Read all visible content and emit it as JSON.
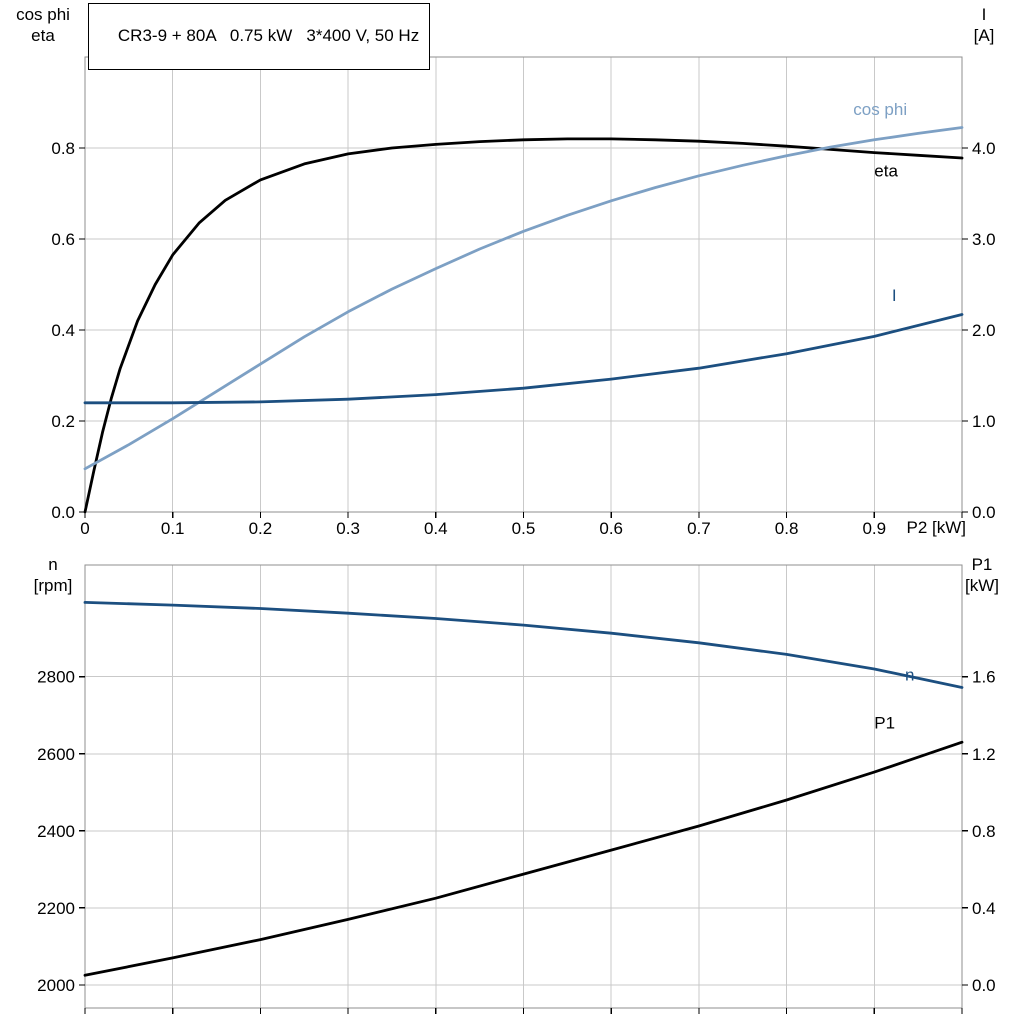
{
  "header": {
    "title": "CR3-9 + 80A   0.75 kW   3*400 V, 50 Hz"
  },
  "colors": {
    "black": "#000000",
    "light_blue": "#7da0c4",
    "dark_blue": "#1c4f80",
    "grid": "#c9c9c9",
    "frame": "#8f8f8f"
  },
  "chart_data": [
    {
      "type": "line",
      "name": "motor-electrical-curves",
      "x_axis": {
        "label": "P2 [kW]",
        "min": 0,
        "max": 1.0,
        "ticks": [
          0,
          0.1,
          0.2,
          0.3,
          0.4,
          0.5,
          0.6,
          0.7,
          0.8,
          0.9
        ],
        "tick_labels": [
          "0",
          "0.1",
          "0.2",
          "0.3",
          "0.4",
          "0.5",
          "0.6",
          "0.7",
          "0.8",
          "0.9"
        ]
      },
      "y_left": {
        "label": "cos phi\neta",
        "min": 0,
        "max": 1.0,
        "ticks": [
          0,
          0.2,
          0.4,
          0.6,
          0.8
        ],
        "tick_labels": [
          "0.0",
          "0.2",
          "0.4",
          "0.6",
          "0.8"
        ]
      },
      "y_right": {
        "label": "I\n[A]",
        "min": 0,
        "max": 5.0,
        "ticks": [
          0,
          1.0,
          2.0,
          3.0,
          4.0
        ],
        "tick_labels": [
          "0.0",
          "1.0",
          "2.0",
          "3.0",
          "4.0"
        ]
      },
      "series": [
        {
          "name": "eta",
          "axis": "left",
          "color": "#000000",
          "x": [
            0,
            0.01,
            0.02,
            0.03,
            0.04,
            0.06,
            0.08,
            0.1,
            0.13,
            0.16,
            0.2,
            0.25,
            0.3,
            0.35,
            0.4,
            0.45,
            0.5,
            0.55,
            0.6,
            0.65,
            0.7,
            0.75,
            0.8,
            0.85,
            0.9,
            0.95,
            1.0
          ],
          "y": [
            0,
            0.09,
            0.175,
            0.25,
            0.315,
            0.42,
            0.5,
            0.565,
            0.635,
            0.685,
            0.73,
            0.765,
            0.787,
            0.8,
            0.808,
            0.814,
            0.818,
            0.82,
            0.82,
            0.818,
            0.815,
            0.81,
            0.804,
            0.797,
            0.79,
            0.784,
            0.778
          ]
        },
        {
          "name": "cos-phi",
          "axis": "left",
          "color": "#7da0c4",
          "x": [
            0,
            0.05,
            0.1,
            0.15,
            0.2,
            0.25,
            0.3,
            0.35,
            0.4,
            0.45,
            0.5,
            0.55,
            0.6,
            0.65,
            0.7,
            0.75,
            0.8,
            0.85,
            0.9,
            0.95,
            1.0
          ],
          "y": [
            0.095,
            0.148,
            0.205,
            0.265,
            0.325,
            0.385,
            0.44,
            0.49,
            0.535,
            0.578,
            0.617,
            0.652,
            0.684,
            0.713,
            0.739,
            0.762,
            0.783,
            0.802,
            0.818,
            0.832,
            0.845
          ]
        },
        {
          "name": "current",
          "axis": "right",
          "color": "#1c4f80",
          "x": [
            0,
            0.1,
            0.2,
            0.3,
            0.4,
            0.5,
            0.6,
            0.7,
            0.8,
            0.9,
            1.0
          ],
          "y": [
            1.2,
            1.2,
            1.21,
            1.24,
            1.29,
            1.36,
            1.46,
            1.58,
            1.74,
            1.93,
            2.17
          ]
        }
      ],
      "annotations": [
        {
          "text": "cos phi",
          "x": 0.876,
          "y": 0.872,
          "axis": "left",
          "color": "#7da0c4"
        },
        {
          "text": "eta",
          "x": 0.9,
          "y": 0.737,
          "axis": "left",
          "color": "#000000"
        },
        {
          "text": "I",
          "x": 0.92,
          "y": 2.32,
          "axis": "right",
          "color": "#1c4f80"
        }
      ]
    },
    {
      "type": "line",
      "name": "motor-mechanical-curves",
      "x_axis": {
        "label": "",
        "min": 0,
        "max": 1.0,
        "ticks": [
          0,
          0.1,
          0.2,
          0.3,
          0.4,
          0.5,
          0.6,
          0.7,
          0.8,
          0.9
        ],
        "tick_labels": []
      },
      "y_left": {
        "label": "n\n[rpm]",
        "min": 1940,
        "max": 3090,
        "ticks": [
          2000,
          2200,
          2400,
          2600,
          2800
        ],
        "tick_labels": [
          "2000",
          "2200",
          "2400",
          "2600",
          "2800"
        ]
      },
      "y_right": {
        "label": "P1\n[kW]",
        "min": -0.12,
        "max": 2.18,
        "ticks": [
          0,
          0.4,
          0.8,
          1.2,
          1.6
        ],
        "tick_labels": [
          "0.0",
          "0.4",
          "0.8",
          "1.2",
          "1.6"
        ]
      },
      "series": [
        {
          "name": "speed",
          "axis": "left",
          "color": "#1c4f80",
          "x": [
            0,
            0.1,
            0.2,
            0.3,
            0.4,
            0.5,
            0.6,
            0.7,
            0.8,
            0.9,
            1.0
          ],
          "y": [
            2993,
            2986,
            2977,
            2965,
            2951,
            2934,
            2913,
            2888,
            2858,
            2820,
            2772
          ]
        },
        {
          "name": "p1-power",
          "axis": "right",
          "color": "#000000",
          "x": [
            0,
            0.1,
            0.2,
            0.3,
            0.4,
            0.5,
            0.6,
            0.7,
            0.8,
            0.9,
            1.0
          ],
          "y": [
            0.05,
            0.14,
            0.235,
            0.34,
            0.45,
            0.575,
            0.7,
            0.825,
            0.96,
            1.105,
            1.26
          ]
        }
      ],
      "annotations": [
        {
          "text": "n",
          "x": 0.935,
          "y": 2790,
          "axis": "left",
          "color": "#1c4f80"
        },
        {
          "text": "P1",
          "x": 0.9,
          "y": 1.33,
          "axis": "right",
          "color": "#000000"
        }
      ]
    }
  ]
}
